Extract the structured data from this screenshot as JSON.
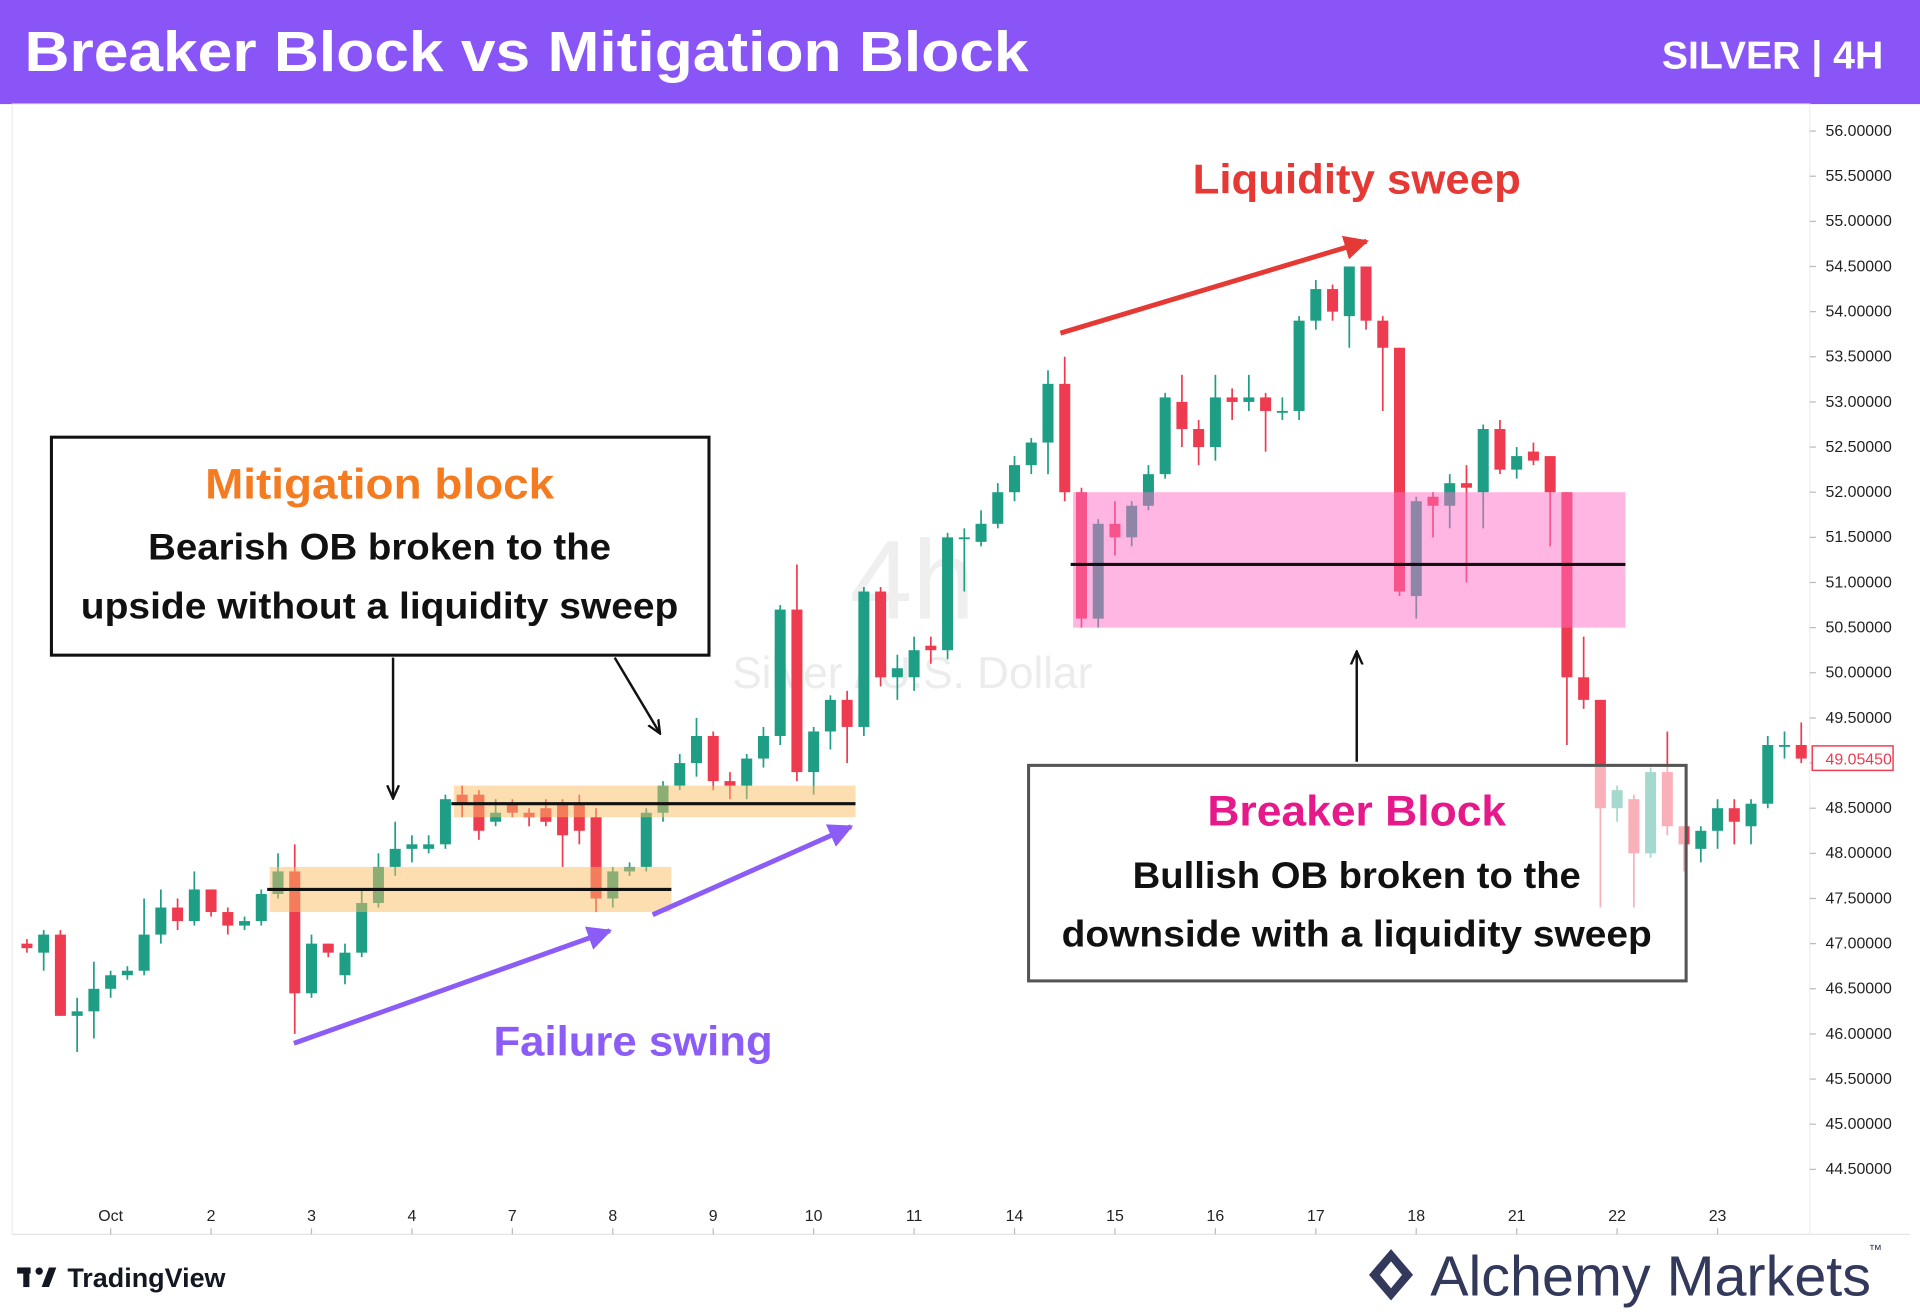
{
  "header": {
    "title": "Breaker Block vs Mitigation Block",
    "symbol": "SILVER | 4H"
  },
  "chart_data": {
    "type": "candlestick",
    "watermark": "4h",
    "symbol_name": "Silver / U.S. Dollar",
    "categories": [
      null,
      null,
      null,
      null,
      null,
      "Oct",
      null,
      null,
      null,
      null,
      null,
      "2",
      null,
      null,
      null,
      null,
      null,
      "3",
      null,
      null,
      null,
      null,
      null,
      "4",
      null,
      null,
      null,
      null,
      null,
      "7",
      null,
      null,
      null,
      null,
      null,
      "8",
      null,
      null,
      null,
      null,
      null,
      "9",
      null,
      null,
      null,
      null,
      null,
      "10",
      null,
      null,
      null,
      null,
      null,
      "11",
      null,
      null,
      null,
      null,
      null,
      "14",
      null,
      null,
      null,
      null,
      null,
      "15",
      null,
      null,
      null,
      null,
      null,
      "16",
      null,
      null,
      null,
      null,
      null,
      "17",
      null,
      null,
      null,
      null,
      null,
      "18",
      null,
      null,
      null,
      null,
      null,
      "21",
      null,
      null,
      null,
      null,
      null,
      "22",
      null,
      null,
      null,
      null,
      null,
      "23",
      null,
      null,
      null,
      null,
      null
    ],
    "open": [
      47.0,
      46.9,
      47.1,
      46.2,
      46.25,
      46.5,
      46.65,
      46.7,
      47.1,
      47.4,
      47.25,
      47.6,
      47.35,
      47.2,
      47.25,
      47.55,
      47.8,
      46.45,
      47.0,
      46.65,
      46.9,
      47.45,
      47.85,
      48.05,
      48.05,
      48.1,
      48.65,
      48.65,
      48.35,
      48.55,
      48.45,
      48.5,
      48.55,
      48.55,
      48.4,
      47.5,
      47.8,
      47.85,
      48.45,
      48.75,
      49.0,
      49.3,
      48.8,
      48.75,
      49.05,
      49.3,
      50.7,
      48.9,
      49.35,
      49.7,
      49.4,
      50.9,
      49.95,
      49.95,
      50.3,
      50.25,
      51.5,
      51.45,
      51.65,
      52.0,
      52.3,
      52.55,
      53.2,
      52.0,
      50.6,
      51.65,
      51.5,
      51.85,
      52.2,
      53.0,
      52.7,
      52.5,
      53.05,
      53.0,
      53.05,
      52.9,
      52.9,
      53.9,
      54.25,
      53.95,
      54.5,
      53.9,
      53.6,
      50.85,
      51.95,
      51.85,
      52.1,
      52.0,
      52.7,
      52.25,
      52.45,
      52.4,
      52.0,
      49.95,
      49.7,
      48.5,
      48.6,
      48.0,
      48.9,
      48.3,
      48.05,
      48.25,
      48.5,
      48.3,
      48.55,
      49.2,
      49.2
    ],
    "high": [
      47.05,
      47.15,
      47.15,
      46.4,
      46.8,
      46.7,
      46.75,
      47.5,
      47.6,
      47.5,
      47.8,
      47.6,
      47.4,
      47.3,
      47.6,
      48.0,
      48.1,
      47.1,
      47.0,
      47.0,
      47.6,
      48.0,
      48.35,
      48.2,
      48.2,
      48.65,
      48.75,
      48.7,
      48.6,
      48.6,
      48.5,
      48.6,
      48.6,
      48.65,
      48.5,
      47.85,
      47.9,
      48.5,
      48.8,
      49.1,
      49.5,
      49.35,
      48.9,
      49.1,
      49.4,
      50.75,
      51.2,
      49.4,
      49.75,
      49.8,
      50.95,
      50.95,
      50.2,
      50.4,
      50.4,
      51.55,
      51.6,
      51.8,
      52.1,
      52.4,
      52.6,
      53.35,
      53.5,
      52.05,
      51.7,
      51.9,
      51.9,
      52.3,
      53.1,
      53.3,
      52.8,
      53.3,
      53.15,
      53.3,
      53.1,
      53.05,
      53.95,
      54.35,
      54.3,
      54.5,
      54.5,
      53.95,
      53.6,
      51.95,
      52.0,
      52.2,
      52.3,
      52.75,
      52.8,
      52.5,
      52.55,
      52.4,
      52.0,
      50.4,
      49.7,
      48.75,
      48.65,
      48.95,
      49.35,
      48.3,
      48.3,
      48.6,
      48.6,
      48.6,
      49.3,
      49.35,
      49.45
    ],
    "low": [
      46.9,
      46.7,
      46.2,
      45.8,
      45.95,
      46.4,
      46.6,
      46.65,
      47.0,
      47.15,
      47.2,
      47.3,
      47.1,
      47.15,
      47.2,
      47.5,
      46.0,
      46.4,
      46.85,
      46.55,
      46.85,
      47.4,
      47.75,
      47.9,
      48.0,
      48.05,
      48.4,
      48.15,
      48.3,
      48.4,
      48.3,
      48.3,
      47.85,
      48.1,
      47.35,
      47.4,
      47.75,
      47.8,
      48.35,
      48.7,
      48.85,
      48.7,
      48.6,
      48.6,
      48.95,
      49.2,
      48.8,
      48.65,
      49.15,
      49.0,
      49.3,
      49.85,
      49.7,
      49.8,
      50.1,
      50.15,
      50.9,
      51.4,
      51.6,
      51.9,
      52.2,
      52.2,
      51.9,
      50.5,
      50.5,
      51.3,
      51.4,
      51.8,
      52.15,
      52.5,
      52.3,
      52.35,
      52.8,
      52.9,
      52.45,
      52.8,
      52.8,
      53.8,
      53.9,
      53.6,
      53.8,
      52.9,
      50.85,
      50.6,
      51.5,
      51.6,
      51.0,
      51.6,
      52.2,
      52.15,
      52.3,
      51.4,
      49.2,
      49.6,
      47.4,
      48.35,
      47.4,
      47.95,
      48.2,
      47.8,
      47.9,
      48.05,
      48.1,
      48.1,
      48.5,
      49.05,
      49.0
    ],
    "close": [
      46.95,
      47.1,
      46.2,
      46.25,
      46.5,
      46.65,
      46.7,
      47.1,
      47.4,
      47.25,
      47.6,
      47.35,
      47.2,
      47.25,
      47.55,
      47.8,
      46.45,
      47.0,
      46.9,
      46.9,
      47.45,
      47.85,
      48.05,
      48.1,
      48.1,
      48.6,
      48.55,
      48.25,
      48.45,
      48.45,
      48.4,
      48.35,
      48.2,
      48.25,
      47.5,
      47.8,
      47.85,
      48.45,
      48.75,
      49.0,
      49.3,
      48.8,
      48.75,
      49.05,
      49.3,
      50.7,
      48.9,
      49.35,
      49.7,
      49.4,
      50.9,
      49.95,
      50.05,
      50.25,
      50.25,
      51.5,
      51.5,
      51.65,
      52.0,
      52.3,
      52.55,
      53.2,
      52.0,
      50.6,
      51.65,
      51.5,
      51.85,
      52.2,
      53.05,
      52.7,
      52.5,
      53.05,
      53.0,
      53.05,
      52.9,
      52.9,
      53.9,
      54.25,
      54.0,
      54.5,
      53.9,
      53.6,
      50.9,
      51.9,
      51.85,
      52.1,
      52.05,
      52.7,
      52.25,
      52.4,
      52.35,
      52.0,
      49.95,
      49.7,
      48.5,
      48.7,
      48.0,
      48.9,
      48.3,
      48.1,
      48.25,
      48.5,
      48.35,
      48.55,
      49.2,
      49.2,
      49.05
    ],
    "up_color": "#1f9e86",
    "down_color": "#ef3b50",
    "ylim": [
      44.2,
      56.25
    ],
    "yticks": [
      {
        "value": 44.5,
        "label": "44.50000"
      },
      {
        "value": 45,
        "label": "45.00000"
      },
      {
        "value": 45.5,
        "label": "45.50000"
      },
      {
        "value": 46,
        "label": "46.00000"
      },
      {
        "value": 46.5,
        "label": "46.50000"
      },
      {
        "value": 47,
        "label": "47.00000"
      },
      {
        "value": 47.5,
        "label": "47.50000"
      },
      {
        "value": 48,
        "label": "48.00000"
      },
      {
        "value": 48.5,
        "label": "48.50000"
      },
      {
        "value": 49,
        "label": "49.00000"
      },
      {
        "value": 49.5,
        "label": "49.50000"
      },
      {
        "value": 50,
        "label": "50.00000"
      },
      {
        "value": 50.5,
        "label": "50.50000"
      },
      {
        "value": 51,
        "label": "51.00000"
      },
      {
        "value": 51.5,
        "label": "51.50000"
      },
      {
        "value": 52,
        "label": "52.00000"
      },
      {
        "value": 52.5,
        "label": "52.50000"
      },
      {
        "value": 53,
        "label": "53.00000"
      },
      {
        "value": 53.5,
        "label": "53.50000"
      },
      {
        "value": 54,
        "label": "54.00000"
      },
      {
        "value": 54.5,
        "label": "54.50000"
      },
      {
        "value": 55,
        "label": "55.00000"
      },
      {
        "value": 55.5,
        "label": "55.50000"
      },
      {
        "value": 56,
        "label": "56.00000"
      }
    ],
    "last_price": 49.0545,
    "last_price_label": "49.05450",
    "zones": [
      {
        "from": 15,
        "to": 38,
        "top": 47.85,
        "bottom": 47.35,
        "level": 47.6,
        "color": "rgba(250,190,100,0.5)"
      },
      {
        "from": 26,
        "to": 49,
        "top": 48.75,
        "bottom": 48.4,
        "level": 48.55,
        "color": "rgba(250,190,100,0.5)"
      },
      {
        "from": 63,
        "to": 95,
        "top": 52.0,
        "bottom": 50.5,
        "level": 51.2,
        "color": "rgba(255,110,200,0.5)"
      }
    ]
  },
  "annotations": {
    "liquidity": "Liquidity sweep",
    "mitigation": {
      "title": "Mitigation block",
      "lines": [
        "Bearish OB broken to the",
        "upside without a liquidity sweep"
      ]
    },
    "breaker": {
      "title": "Breaker Block",
      "lines": [
        "Bullish OB broken to the",
        "downside with a liquidity sweep"
      ]
    },
    "failure": "Failure swing"
  },
  "footer": {
    "tradingview": "TradingView",
    "brand": "Alchemy Markets",
    "tm": "™"
  }
}
